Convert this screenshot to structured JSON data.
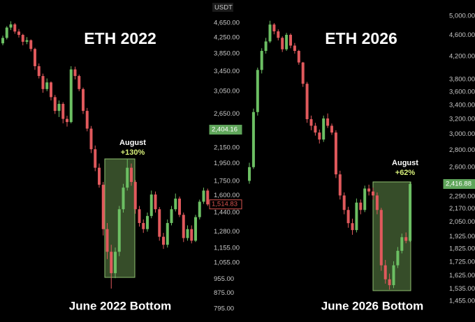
{
  "chart_data": [
    {
      "type": "candlestick",
      "title": "ETH 2022",
      "footer": "June 2022 Bottom",
      "currency": "USDT",
      "annotation": {
        "label": "August",
        "change": "+130%"
      },
      "log_scale": true,
      "ylim": [
        732,
        5360
      ],
      "yticks": [
        {
          "value": 4650,
          "label": "4,650.00"
        },
        {
          "value": 4250,
          "label": "4,250.00"
        },
        {
          "value": 3850,
          "label": "3,850.00"
        },
        {
          "value": 3450,
          "label": "3,450.00"
        },
        {
          "value": 3050,
          "label": "3,050.00"
        },
        {
          "value": 2650,
          "label": "2,650.00"
        },
        {
          "value": 2150,
          "label": "2,150.00"
        },
        {
          "value": 1950,
          "label": "1,950.00"
        },
        {
          "value": 1750,
          "label": "1,750.00"
        },
        {
          "value": 1600,
          "label": "1,600.00"
        },
        {
          "value": 1440,
          "label": "1,440.00"
        },
        {
          "value": 1280,
          "label": "1,280.00"
        },
        {
          "value": 1155,
          "label": "1,155.00"
        },
        {
          "value": 1055,
          "label": "1,055.00"
        },
        {
          "value": 955,
          "label": "955.00"
        },
        {
          "value": 875,
          "label": "875.00"
        },
        {
          "value": 795,
          "label": "795.00"
        }
      ],
      "price_tags": [
        {
          "value": 2404.16,
          "label": "2,404.16",
          "color": "#5fa55a",
          "style": "filled"
        },
        {
          "value": 1514.83,
          "label": "1,514.83",
          "color": "#d9534f",
          "style": "outline"
        }
      ],
      "up_color": "#6cbf63",
      "down_color": "#e0595c",
      "open": [
        4100,
        4240,
        4520,
        4610,
        4410,
        4320,
        4140,
        4180,
        3960,
        3560,
        3350,
        3090,
        3220,
        2940,
        2700,
        2820,
        2570,
        2520,
        3490,
        3350,
        3090,
        2700,
        2420,
        2130,
        1900,
        1710,
        1300,
        1130,
        990,
        1130,
        1470,
        1680,
        1900,
        1740,
        1470,
        1350,
        1300,
        1410,
        1610,
        1470,
        1240,
        1180,
        1350,
        1470,
        1570,
        1420,
        1230,
        1300,
        1210,
        1400,
        1540,
        1650
      ],
      "high": [
        4300,
        4560,
        4700,
        4650,
        4480,
        4350,
        4260,
        4200,
        3990,
        3620,
        3400,
        3300,
        3240,
        2980,
        2880,
        2850,
        2620,
        3560,
        3550,
        3380,
        3120,
        2750,
        2460,
        2180,
        1950,
        1740,
        1350,
        1180,
        1160,
        1500,
        1720,
        2000,
        1950,
        1760,
        1500,
        1380,
        1440,
        1650,
        1640,
        1490,
        1270,
        1380,
        1500,
        1620,
        1590,
        1440,
        1330,
        1330,
        1420,
        1560,
        1680,
        1670
      ],
      "low": [
        4050,
        4200,
        4450,
        4350,
        4250,
        4050,
        4080,
        3900,
        3480,
        3300,
        3020,
        3050,
        2880,
        2650,
        2600,
        2500,
        2450,
        2500,
        3280,
        3050,
        2650,
        2380,
        2080,
        1860,
        1680,
        1250,
        1080,
        900,
        960,
        1100,
        1440,
        1650,
        1700,
        1430,
        1320,
        1270,
        1280,
        1390,
        1440,
        1210,
        1150,
        1160,
        1330,
        1450,
        1400,
        1200,
        1210,
        1190,
        1200,
        1380,
        1520,
        1500
      ],
      "close": [
        4240,
        4520,
        4610,
        4410,
        4320,
        4140,
        4180,
        3960,
        3560,
        3350,
        3090,
        3220,
        2940,
        2700,
        2820,
        2570,
        2520,
        3490,
        3350,
        3090,
        2700,
        2420,
        2130,
        1900,
        1710,
        1300,
        1130,
        990,
        1130,
        1470,
        1680,
        1900,
        1740,
        1470,
        1350,
        1300,
        1410,
        1610,
        1470,
        1240,
        1180,
        1350,
        1470,
        1570,
        1420,
        1230,
        1300,
        1210,
        1400,
        1540,
        1650,
        1514.83
      ]
    },
    {
      "type": "candlestick",
      "title": "ETH 2026",
      "footer": "June 2026 Bottom",
      "annotation": {
        "label": "August",
        "change": "+62%"
      },
      "log_scale": true,
      "ylim": [
        1330,
        5360
      ],
      "yticks": [
        {
          "value": 5000,
          "label": "5,000.00"
        },
        {
          "value": 4600,
          "label": "4,600.00"
        },
        {
          "value": 4200,
          "label": "4,200.00"
        },
        {
          "value": 3800,
          "label": "3,800.00"
        },
        {
          "value": 3600,
          "label": "3,600.00"
        },
        {
          "value": 3400,
          "label": "3,400.00"
        },
        {
          "value": 3200,
          "label": "3,200.00"
        },
        {
          "value": 3000,
          "label": "3,000.00"
        },
        {
          "value": 2800,
          "label": "2,800.00"
        },
        {
          "value": 2600,
          "label": "2,600.00"
        },
        {
          "value": 2290,
          "label": "2,290.00"
        },
        {
          "value": 2170,
          "label": "2,170.00"
        },
        {
          "value": 2050,
          "label": "2,050.00"
        },
        {
          "value": 1925,
          "label": "1,925.00"
        },
        {
          "value": 1825,
          "label": "1,825.00"
        },
        {
          "value": 1725,
          "label": "1,725.00"
        },
        {
          "value": 1625,
          "label": "1,625.00"
        },
        {
          "value": 1535,
          "label": "1,535.00"
        },
        {
          "value": 1455,
          "label": "1,455.00"
        }
      ],
      "price_tags": [
        {
          "value": 2416.88,
          "label": "2,416.88",
          "color": "#5fa55a",
          "style": "filled"
        }
      ],
      "up_color": "#6cbf63",
      "down_color": "#e0595c",
      "open": [
        2450,
        2600,
        3300,
        3960,
        4300,
        4480,
        4820,
        4680,
        4550,
        4330,
        4610,
        4400,
        4300,
        4090,
        3730,
        3200,
        3110,
        3020,
        2930,
        3210,
        3110,
        3020,
        2520,
        2300,
        2160,
        2040,
        1980,
        2230,
        2160,
        2370,
        2340,
        2300,
        2160,
        1700,
        1600,
        1560,
        1700,
        1810,
        1920,
        1890
      ],
      "high": [
        2650,
        3350,
        4000,
        4350,
        4550,
        4900,
        4850,
        4720,
        4580,
        4650,
        4640,
        4450,
        4320,
        4100,
        3760,
        3250,
        3150,
        3060,
        3250,
        3280,
        3140,
        3050,
        2560,
        2330,
        2190,
        2080,
        2270,
        2260,
        2400,
        2410,
        2380,
        2330,
        2180,
        1740,
        1640,
        1730,
        1840,
        1950,
        1960,
        2440
      ],
      "low": [
        2420,
        2580,
        3250,
        3900,
        4250,
        4450,
        4620,
        4500,
        4280,
        4300,
        4350,
        4250,
        4050,
        3680,
        3150,
        3050,
        2980,
        2880,
        2900,
        3080,
        2990,
        2480,
        2260,
        2120,
        2000,
        1940,
        1960,
        2120,
        2140,
        2300,
        2260,
        2120,
        1660,
        1570,
        1530,
        1540,
        1680,
        1790,
        1870,
        1880
      ],
      "close": [
        2600,
        3300,
        3960,
        4300,
        4480,
        4820,
        4680,
        4550,
        4330,
        4610,
        4400,
        4300,
        4090,
        3730,
        3200,
        3110,
        3020,
        2930,
        3210,
        3110,
        3020,
        2520,
        2300,
        2160,
        2040,
        1980,
        2230,
        2160,
        2370,
        2340,
        2300,
        2160,
        1700,
        1600,
        1560,
        1700,
        1810,
        1920,
        1890,
        2416.88
      ]
    }
  ]
}
